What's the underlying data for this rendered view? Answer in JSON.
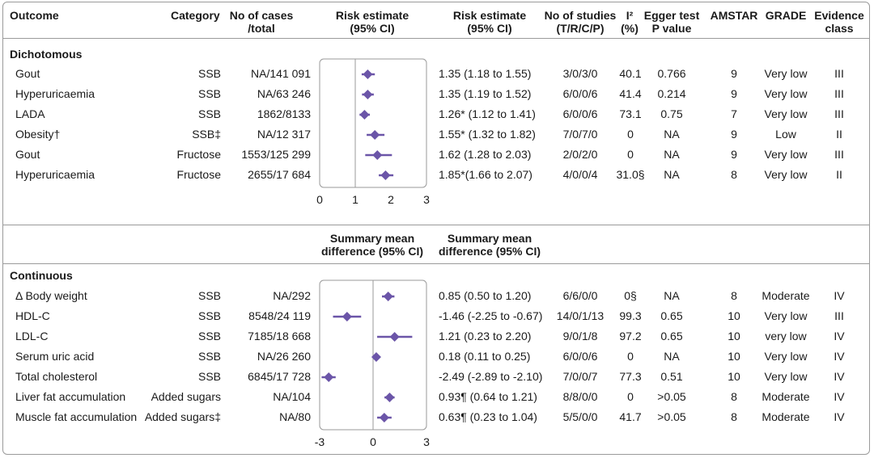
{
  "headers": {
    "outcome": "Outcome",
    "category": "Category",
    "cases": [
      "No of cases",
      "/total"
    ],
    "risk_plot": [
      "Risk estimate",
      "(95% CI)"
    ],
    "risk_text": [
      "Risk estimate",
      "(95% CI)"
    ],
    "studies": [
      "No of studies",
      "(T/R/C/P)"
    ],
    "i2": [
      "I²",
      "(%)"
    ],
    "egger": [
      "Egger test",
      "P value"
    ],
    "amstar": "AMSTAR",
    "grade": "GRADE",
    "evidence": [
      "Evidence",
      "class"
    ]
  },
  "mid_headers": {
    "smd_plot": [
      "Summary mean",
      "difference (95% CI)"
    ],
    "smd_text": [
      "Summary mean",
      "difference (95% CI)"
    ]
  },
  "sections": {
    "dichotomous": "Dichotomous",
    "continuous": "Continuous"
  },
  "colors": {
    "marker": "#6b55a8",
    "border": "#9a9a9a",
    "text": "#1a1a1a"
  },
  "chart_data": [
    {
      "type": "forest",
      "section": "Dichotomous",
      "x_ticks": [
        "0",
        "1",
        "2",
        "3"
      ],
      "xlim": [
        0,
        3
      ],
      "reference_line": 1,
      "rows": [
        {
          "outcome": "Gout",
          "category": "SSB",
          "cases": "NA/141 091",
          "est": 1.35,
          "lo": 1.18,
          "hi": 1.55,
          "estimate_text": "1.35 (1.18 to 1.55)",
          "studies": "3/0/3/0",
          "i2": "40.1",
          "egger": "0.766",
          "amstar": "9",
          "grade": "Very low",
          "evidence": "III"
        },
        {
          "outcome": "Hyperuricaemia",
          "category": "SSB",
          "cases": "NA/63 246",
          "est": 1.35,
          "lo": 1.19,
          "hi": 1.52,
          "estimate_text": "1.35 (1.19 to 1.52)",
          "studies": "6/0/0/6",
          "i2": "41.4",
          "egger": "0.214",
          "amstar": "9",
          "grade": "Very low",
          "evidence": "III"
        },
        {
          "outcome": "LADA",
          "category": "SSB",
          "cases": "1862/8133",
          "est": 1.26,
          "lo": 1.12,
          "hi": 1.41,
          "estimate_text": "1.26* (1.12 to 1.41)",
          "studies": "6/0/0/6",
          "i2": "73.1",
          "egger": "0.75",
          "amstar": "7",
          "grade": "Very low",
          "evidence": "III"
        },
        {
          "outcome": "Obesity†",
          "category": "SSB‡",
          "cases": "NA/12 317",
          "est": 1.55,
          "lo": 1.32,
          "hi": 1.82,
          "estimate_text": "1.55* (1.32 to 1.82)",
          "studies": "7/0/7/0",
          "i2": "0",
          "egger": "NA",
          "amstar": "9",
          "grade": "Low",
          "evidence": "II"
        },
        {
          "outcome": "Gout",
          "category": "Fructose",
          "cases": "1553/125 299",
          "est": 1.62,
          "lo": 1.28,
          "hi": 2.03,
          "estimate_text": "1.62 (1.28 to 2.03)",
          "studies": "2/0/2/0",
          "i2": "0",
          "egger": "NA",
          "amstar": "9",
          "grade": "Very low",
          "evidence": "III"
        },
        {
          "outcome": "Hyperuricaemia",
          "category": "Fructose",
          "cases": "2655/17 684",
          "est": 1.85,
          "lo": 1.66,
          "hi": 2.07,
          "estimate_text": "1.85*(1.66 to 2.07)",
          "studies": "4/0/0/4",
          "i2": "31.0§",
          "egger": "NA",
          "amstar": "8",
          "grade": "Very low",
          "evidence": "II"
        }
      ]
    },
    {
      "type": "forest",
      "section": "Continuous",
      "x_ticks": [
        "-3",
        "0",
        "3"
      ],
      "xlim": [
        -3,
        3
      ],
      "reference_line": 0,
      "rows": [
        {
          "outcome": "Δ Body weight",
          "category": "SSB",
          "cases": "NA/292",
          "est": 0.85,
          "lo": 0.5,
          "hi": 1.2,
          "estimate_text": "0.85 (0.50 to 1.20)",
          "studies": "6/6/0/0",
          "i2": "0§",
          "egger": "NA",
          "amstar": "8",
          "grade": "Moderate",
          "evidence": "IV"
        },
        {
          "outcome": "HDL-C",
          "category": "SSB",
          "cases": "8548/24 119",
          "est": -1.46,
          "lo": -2.25,
          "hi": -0.67,
          "estimate_text": "-1.46 (-2.25 to -0.67)",
          "studies": "14/0/1/13",
          "i2": "99.3",
          "egger": "0.65",
          "amstar": "10",
          "grade": "Very low",
          "evidence": "III"
        },
        {
          "outcome": "LDL-C",
          "category": "SSB",
          "cases": "7185/18 668",
          "est": 1.21,
          "lo": 0.23,
          "hi": 2.2,
          "estimate_text": "1.21 (0.23 to 2.20)",
          "studies": "9/0/1/8",
          "i2": "97.2",
          "egger": "0.65",
          "amstar": "10",
          "grade": "very low",
          "evidence": "IV"
        },
        {
          "outcome": "Serum uric acid",
          "category": "SSB",
          "cases": "NA/26 260",
          "est": 0.18,
          "lo": 0.11,
          "hi": 0.25,
          "estimate_text": "0.18 (0.11 to 0.25)",
          "studies": "6/0/0/6",
          "i2": "0",
          "egger": "NA",
          "amstar": "10",
          "grade": "Very low",
          "evidence": "IV"
        },
        {
          "outcome": "Total cholesterol",
          "category": "SSB",
          "cases": "6845/17 728",
          "est": -2.49,
          "lo": -2.89,
          "hi": -2.1,
          "estimate_text": "-2.49 (-2.89 to -2.10)",
          "studies": "7/0/0/7",
          "i2": "77.3",
          "egger": "0.51",
          "amstar": "10",
          "grade": "Very low",
          "evidence": "IV"
        },
        {
          "outcome": "Liver fat accumulation",
          "category": "Added sugars",
          "cases": "NA/104",
          "est": 0.93,
          "lo": 0.64,
          "hi": 1.21,
          "estimate_text": "0.93¶ (0.64 to 1.21)",
          "studies": "8/8/0/0",
          "i2": "0",
          "egger": ">0.05",
          "amstar": "8",
          "grade": "Moderate",
          "evidence": "IV"
        },
        {
          "outcome": "Muscle fat accumulation",
          "category": "Added sugars‡",
          "cases": "NA/80",
          "est": 0.63,
          "lo": 0.23,
          "hi": 1.04,
          "estimate_text": "0.63¶ (0.23 to 1.04)",
          "studies": "5/5/0/0",
          "i2": "41.7",
          "egger": ">0.05",
          "amstar": "8",
          "grade": "Moderate",
          "evidence": "IV"
        }
      ]
    }
  ]
}
